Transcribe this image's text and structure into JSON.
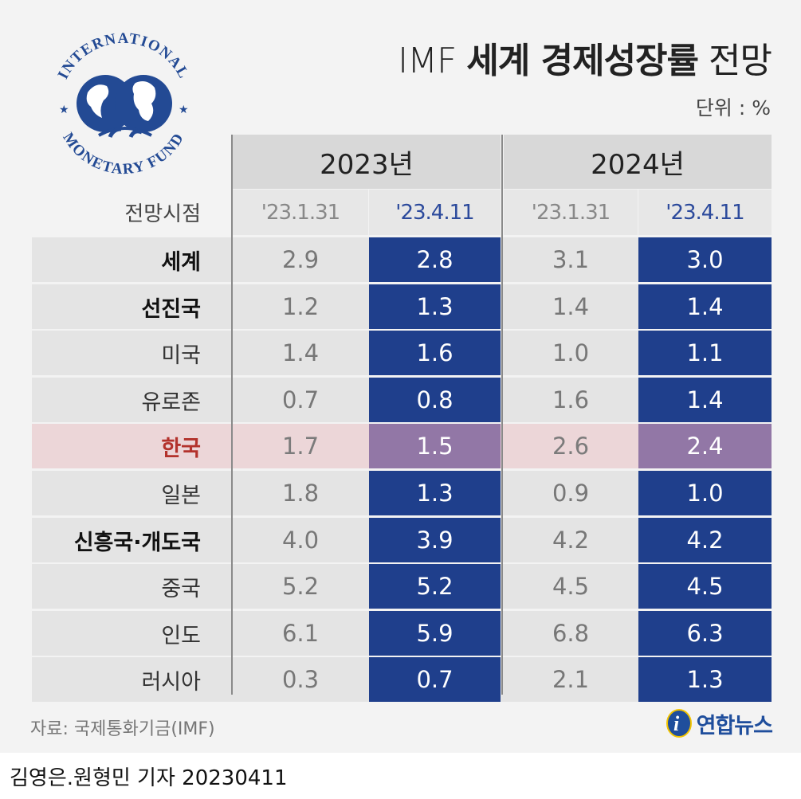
{
  "title": {
    "light_prefix": "IMF",
    "bold": "세계 경제성장률",
    "light_suffix": "전망"
  },
  "unit": "단위 : %",
  "logo": {
    "top_text": "INTERNATIONAL",
    "bottom_text": "MONETARY FUND"
  },
  "colors": {
    "navy": "#1f3f8c",
    "purple": "#9277a6",
    "korea_red": "#b3322c",
    "highlight_row": "#ecd6d8"
  },
  "chart_data": {
    "type": "table",
    "title": "IMF 세계 경제성장률 전망",
    "unit": "%",
    "date_header": "전망시점",
    "years": [
      "2023년",
      "2024년"
    ],
    "forecast_dates": [
      "'23.1.31",
      "'23.4.11",
      "'23.1.31",
      "'23.4.11"
    ],
    "rows": [
      {
        "name": "세계",
        "style": "bold",
        "values": [
          "2.9",
          "2.8",
          "3.1",
          "3.0"
        ]
      },
      {
        "name": "선진국",
        "style": "bold",
        "values": [
          "1.2",
          "1.3",
          "1.4",
          "1.4"
        ]
      },
      {
        "name": "미국",
        "style": "normal",
        "values": [
          "1.4",
          "1.6",
          "1.0",
          "1.1"
        ]
      },
      {
        "name": "유로존",
        "style": "normal",
        "values": [
          "0.7",
          "0.8",
          "1.6",
          "1.4"
        ]
      },
      {
        "name": "한국",
        "style": "korea",
        "values": [
          "1.7",
          "1.5",
          "2.6",
          "2.4"
        ]
      },
      {
        "name": "일본",
        "style": "normal",
        "values": [
          "1.8",
          "1.3",
          "0.9",
          "1.0"
        ]
      },
      {
        "name": "신흥국·개도국",
        "style": "bold",
        "values": [
          "4.0",
          "3.9",
          "4.2",
          "4.2"
        ]
      },
      {
        "name": "중국",
        "style": "normal",
        "values": [
          "5.2",
          "5.2",
          "4.5",
          "4.5"
        ]
      },
      {
        "name": "인도",
        "style": "normal",
        "values": [
          "6.1",
          "5.9",
          "6.8",
          "6.3"
        ]
      },
      {
        "name": "러시아",
        "style": "normal",
        "values": [
          "0.3",
          "0.7",
          "2.1",
          "1.3"
        ]
      }
    ]
  },
  "source": "자료: 국제통화기금(IMF)",
  "brand": {
    "name": "연합뉴스"
  },
  "credit": "김영은.원형민 기자  20230411"
}
